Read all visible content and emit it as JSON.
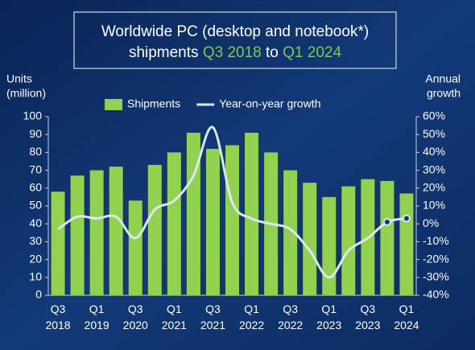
{
  "chart_data": {
    "type": "bar-line",
    "title": {
      "line1": "Worldwide PC (desktop and notebook*)",
      "line2": [
        "shipments",
        "Q3 2018",
        "to",
        "Q1 2024"
      ]
    },
    "y_label": [
      "Units",
      "(million)"
    ],
    "y2_label": [
      "Annual",
      "growth"
    ],
    "categories": [
      [
        "Q3",
        "2018"
      ],
      null,
      [
        "Q1",
        "2019"
      ],
      null,
      [
        "Q3",
        "2020"
      ],
      null,
      [
        "Q1",
        "2021"
      ],
      null,
      [
        "Q3",
        "2021"
      ],
      null,
      [
        "Q1",
        "2022"
      ],
      null,
      [
        "Q3",
        "2022"
      ],
      null,
      [
        "Q1",
        "2023"
      ],
      null,
      [
        "Q3",
        "2023"
      ],
      null,
      [
        "Q1",
        "2024"
      ]
    ],
    "series": [
      {
        "name": "Shipments",
        "color": "#92d050",
        "values": [
          58,
          67,
          70,
          72,
          53,
          73,
          80,
          91,
          82,
          84,
          91,
          80,
          70,
          63,
          55,
          61,
          65,
          64,
          57
        ]
      },
      {
        "name": "Year-on-year growth",
        "color": "#dce6f2",
        "axis": "y2",
        "values": [
          -3,
          4,
          3,
          4,
          -8,
          8,
          13,
          27,
          54,
          12,
          3,
          0,
          -3,
          -15,
          -30,
          -15,
          -8,
          1,
          3
        ]
      }
    ],
    "ylim": [
      0,
      100
    ],
    "yticks": [
      0,
      10,
      20,
      30,
      40,
      50,
      60,
      70,
      80,
      90,
      100
    ],
    "y2lim": [
      -40,
      60
    ],
    "y2ticks": [
      {
        "value": 60,
        "label": "60%"
      },
      {
        "value": 50,
        "label": "50%"
      },
      {
        "value": 40,
        "label": "40%"
      },
      {
        "value": 30,
        "label": "30%"
      },
      {
        "value": 20,
        "label": "20%"
      },
      {
        "value": 10,
        "label": "10%"
      },
      {
        "value": 0,
        "label": "0%"
      },
      {
        "value": -10,
        "label": "-10%"
      },
      {
        "value": -20,
        "label": "-20%"
      },
      {
        "value": -30,
        "label": "-30%"
      },
      {
        "value": -40,
        "label": "-40%"
      }
    ],
    "legend": "top"
  }
}
